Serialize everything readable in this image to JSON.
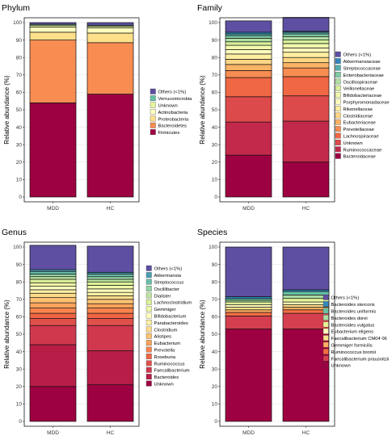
{
  "colors": {
    "plot_border": "#1a1a1a",
    "grid": "#e6e6e6",
    "bar_outline": "#111111"
  },
  "chart_data": [
    {
      "type": "bar",
      "stacked": true,
      "title": "Phylum",
      "ylabel": "Relative abundance (%)",
      "xlabel": "",
      "categories": [
        "MDD",
        "HC"
      ],
      "ylim": [
        0,
        100
      ],
      "yticks": [
        "0",
        "10",
        "20",
        "30",
        "40",
        "50",
        "60",
        "70",
        "80",
        "90",
        "100"
      ],
      "grid": true,
      "legend_position": "right",
      "series": [
        {
          "name": "Firmicutes",
          "color": "#9e0142",
          "values": [
            54,
            59
          ]
        },
        {
          "name": "Bacteroidetes",
          "color": "#f88d52",
          "values": [
            36,
            29.5
          ]
        },
        {
          "name": "Proteobacteria",
          "color": "#fee08b",
          "values": [
            4.5,
            5.5
          ]
        },
        {
          "name": "Actinobacteria",
          "color": "#ffffbf",
          "values": [
            3,
            3
          ]
        },
        {
          "name": "Unknown",
          "color": "#e6f598",
          "values": [
            1,
            1
          ]
        },
        {
          "name": "Verrucomicrobia",
          "color": "#66c2a5",
          "values": [
            0.5,
            0.5
          ]
        },
        {
          "name": "Others (<1%)",
          "color": "#5e4fa2",
          "values": [
            1,
            1.5
          ]
        }
      ]
    },
    {
      "type": "bar",
      "stacked": true,
      "title": "Family",
      "ylabel": "Relative abundance (%)",
      "xlabel": "",
      "categories": [
        "MDD",
        "HC"
      ],
      "ylim": [
        0,
        100
      ],
      "yticks": [
        "0",
        "10",
        "20",
        "30",
        "40",
        "50",
        "60",
        "70",
        "80",
        "90",
        "100"
      ],
      "grid": true,
      "legend_position": "right",
      "series": [
        {
          "name": "Bacteroidaceae",
          "color": "#9e0142",
          "values": [
            24,
            20
          ]
        },
        {
          "name": "Ruminococcaceae",
          "color": "#c2294a",
          "values": [
            19,
            23.5
          ]
        },
        {
          "name": "Unknown",
          "color": "#dd4a4c",
          "values": [
            14.5,
            14.5
          ]
        },
        {
          "name": "Lachnospiraceae",
          "color": "#f06744",
          "values": [
            11,
            11
          ]
        },
        {
          "name": "Prevotellaceae",
          "color": "#f88d52",
          "values": [
            4,
            5
          ]
        },
        {
          "name": "Eubacteriaceae",
          "color": "#fdb365",
          "values": [
            3.5,
            3
          ]
        },
        {
          "name": "Clostridiaceae",
          "color": "#fed683",
          "values": [
            3,
            3
          ]
        },
        {
          "name": "Rikenellaceae",
          "color": "#ffeea1",
          "values": [
            3,
            3
          ]
        },
        {
          "name": "Porphyromonadaceae",
          "color": "#fffebe",
          "values": [
            2.5,
            2.5
          ]
        },
        {
          "name": "Bifidobacteriaceae",
          "color": "#f2faac",
          "values": [
            2.5,
            2.5
          ]
        },
        {
          "name": "Veillonellaceae",
          "color": "#d7ef9b",
          "values": [
            2,
            2
          ]
        },
        {
          "name": "Oscillospiraceae",
          "color": "#b0dfa3",
          "values": [
            2,
            2
          ]
        },
        {
          "name": "Enterobacteriaceae",
          "color": "#7fcba4",
          "values": [
            1.5,
            1.5
          ]
        },
        {
          "name": "Streptococcaceae",
          "color": "#54aead",
          "values": [
            1,
            1
          ]
        },
        {
          "name": "Akkermansiaceae",
          "color": "#3387bc",
          "values": [
            1,
            0.5
          ]
        },
        {
          "name": "Others (<1%)",
          "color": "#5e4fa2",
          "values": [
            6.5,
            8
          ]
        }
      ]
    },
    {
      "type": "bar",
      "stacked": true,
      "title": "Genus",
      "ylabel": "Relative abundance (%)",
      "xlabel": "",
      "categories": [
        "MDD",
        "HC"
      ],
      "ylim": [
        0,
        100
      ],
      "yticks": [
        "0",
        "10",
        "20",
        "30",
        "40",
        "50",
        "60",
        "70",
        "80",
        "90",
        "100"
      ],
      "grid": true,
      "legend_position": "right",
      "series": [
        {
          "name": "Unknown",
          "color": "#9e0142",
          "values": [
            20,
            21
          ]
        },
        {
          "name": "Bacteroides",
          "color": "#b81d48",
          "values": [
            24,
            19.5
          ]
        },
        {
          "name": "Faecalibacterium",
          "color": "#d0384e",
          "values": [
            11,
            14.5
          ]
        },
        {
          "name": "Ruminococcus",
          "color": "#e0504a",
          "values": [
            4,
            4
          ]
        },
        {
          "name": "Roseburia",
          "color": "#ee6544",
          "values": [
            3,
            3
          ]
        },
        {
          "name": "Prevotella",
          "color": "#f7844e",
          "values": [
            3,
            3
          ]
        },
        {
          "name": "Eubacterium",
          "color": "#fba35c",
          "values": [
            3,
            2.5
          ]
        },
        {
          "name": "Alistipes",
          "color": "#fdc272",
          "values": [
            3,
            2.5
          ]
        },
        {
          "name": "Clostridium",
          "color": "#fedc8a",
          "values": [
            2.5,
            2
          ]
        },
        {
          "name": "Parabacteroides",
          "color": "#fff0a6",
          "values": [
            2,
            2
          ]
        },
        {
          "name": "Bifidobacterium",
          "color": "#feffbe",
          "values": [
            2,
            2
          ]
        },
        {
          "name": "Gemmiger",
          "color": "#f0f9a7",
          "values": [
            2,
            2
          ]
        },
        {
          "name": "Lachnoclostridium",
          "color": "#dbf199",
          "values": [
            2,
            2
          ]
        },
        {
          "name": "Dialister",
          "color": "#bde5a0",
          "values": [
            1.5,
            1.5
          ]
        },
        {
          "name": "Oscillibacter",
          "color": "#94d4a4",
          "values": [
            1.5,
            1.5
          ]
        },
        {
          "name": "Streptococcus",
          "color": "#69bda9",
          "values": [
            1.5,
            1.5
          ]
        },
        {
          "name": "Akkermansia",
          "color": "#4a9db3",
          "values": [
            1,
            1
          ]
        },
        {
          "name": "Others (<1%)",
          "color": "#5e4fa2",
          "values": [
            14,
            15
          ]
        }
      ]
    },
    {
      "type": "bar",
      "stacked": true,
      "title": "Species",
      "ylabel": "Relative abundance (%)",
      "xlabel": "",
      "categories": [
        "MDD",
        "HC"
      ],
      "ylim": [
        0,
        100
      ],
      "yticks": [
        "0",
        "10",
        "20",
        "30",
        "40",
        "50",
        "60",
        "70",
        "80",
        "90",
        "100"
      ],
      "grid": true,
      "legend_position": "right",
      "series": [
        {
          "name": "Unknown",
          "color": "#9e0142",
          "values": [
            53,
            53
          ]
        },
        {
          "name": "Faecalibacterium prausnitzii",
          "color": "#d53e4f",
          "values": [
            7.5,
            9
          ]
        },
        {
          "name": "Ruminococcus bromii",
          "color": "#f46d43",
          "values": [
            2,
            2
          ]
        },
        {
          "name": "Gemmiger formicilis",
          "color": "#fdae61",
          "values": [
            1.5,
            1.5
          ]
        },
        {
          "name": "Faecalibacterium CM04 06",
          "color": "#fee08b",
          "values": [
            1.5,
            1.5
          ]
        },
        {
          "name": "Eubacterium eligens",
          "color": "#ffffbf",
          "values": [
            1.5,
            1.5
          ]
        },
        {
          "name": "Bacteroides vulgatus",
          "color": "#e6f598",
          "values": [
            1.5,
            2
          ]
        },
        {
          "name": "Bacteroides dorei",
          "color": "#abdda4",
          "values": [
            1,
            2
          ]
        },
        {
          "name": "Bacteroides uniformis",
          "color": "#66c2a5",
          "values": [
            1,
            2
          ]
        },
        {
          "name": "Bacteroides stercoris",
          "color": "#3288bd",
          "values": [
            1,
            1
          ]
        },
        {
          "name": "Others (<1%)",
          "color": "#5e4fa2",
          "values": [
            28.5,
            24.5
          ]
        }
      ]
    }
  ]
}
